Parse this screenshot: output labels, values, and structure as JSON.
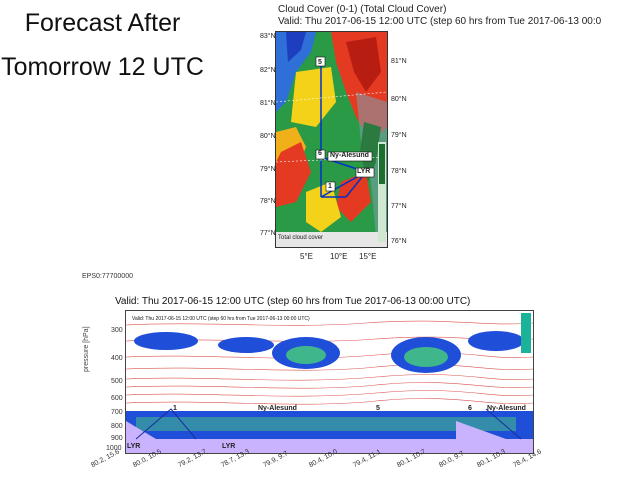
{
  "slide": {
    "title_line1": "Forecast After",
    "title_line2": "Tomorrow 12 UTC"
  },
  "map": {
    "title": "Cloud Cover (0-1) (Total Cloud Cover)",
    "valid": "Valid: Thu 2017-06-15 12:00 UTC (step 60 hrs from Tue 2017-06-13 00:0",
    "lat_left": [
      "83°N",
      "82°N",
      "81°N",
      "80°N",
      "79°N",
      "78°N",
      "77°N"
    ],
    "lat_right": [
      "81°N",
      "80°N",
      "79°N",
      "78°N",
      "77°N",
      "76°N"
    ],
    "lon": [
      "5°E",
      "10°E",
      "15°E"
    ],
    "station_markers": [
      "5",
      "6",
      "1"
    ],
    "station_labels": [
      "Ny-Alesund",
      "LYR"
    ],
    "footer_note": "Total cloud cover"
  },
  "small_id": "EPS0:77700000",
  "cross_section": {
    "valid": "Valid: Thu 2017-06-15 12:00 UTC (step 60 hrs from Tue 2017-06-13 00:00 UTC)",
    "inner_valid": "Valid: Thu 2017-06-15 12:00 UTC (step 60 hrs from Tue 2017-06-13 00:00 UTC)",
    "y_title": "pressure [hPa]",
    "y_ticks": [
      "300",
      "400",
      "500",
      "600",
      "700",
      "800",
      "900",
      "1000"
    ],
    "x_ticks": [
      "80.2, 15.6",
      "80.0, 10.5",
      "79.2, 13.7",
      "78.7, 13.3",
      "79.9, 9.7",
      "80.4, 10.0",
      "79.4, 11.1",
      "80.1, 10.7",
      "80.0, 9.7",
      "80.1, 10.3",
      "78.4, 14.6"
    ],
    "markers": [
      "1",
      "Ny-Alesund",
      "5",
      "6",
      "Ny-Alesund",
      "LYR",
      "LYR"
    ]
  }
}
